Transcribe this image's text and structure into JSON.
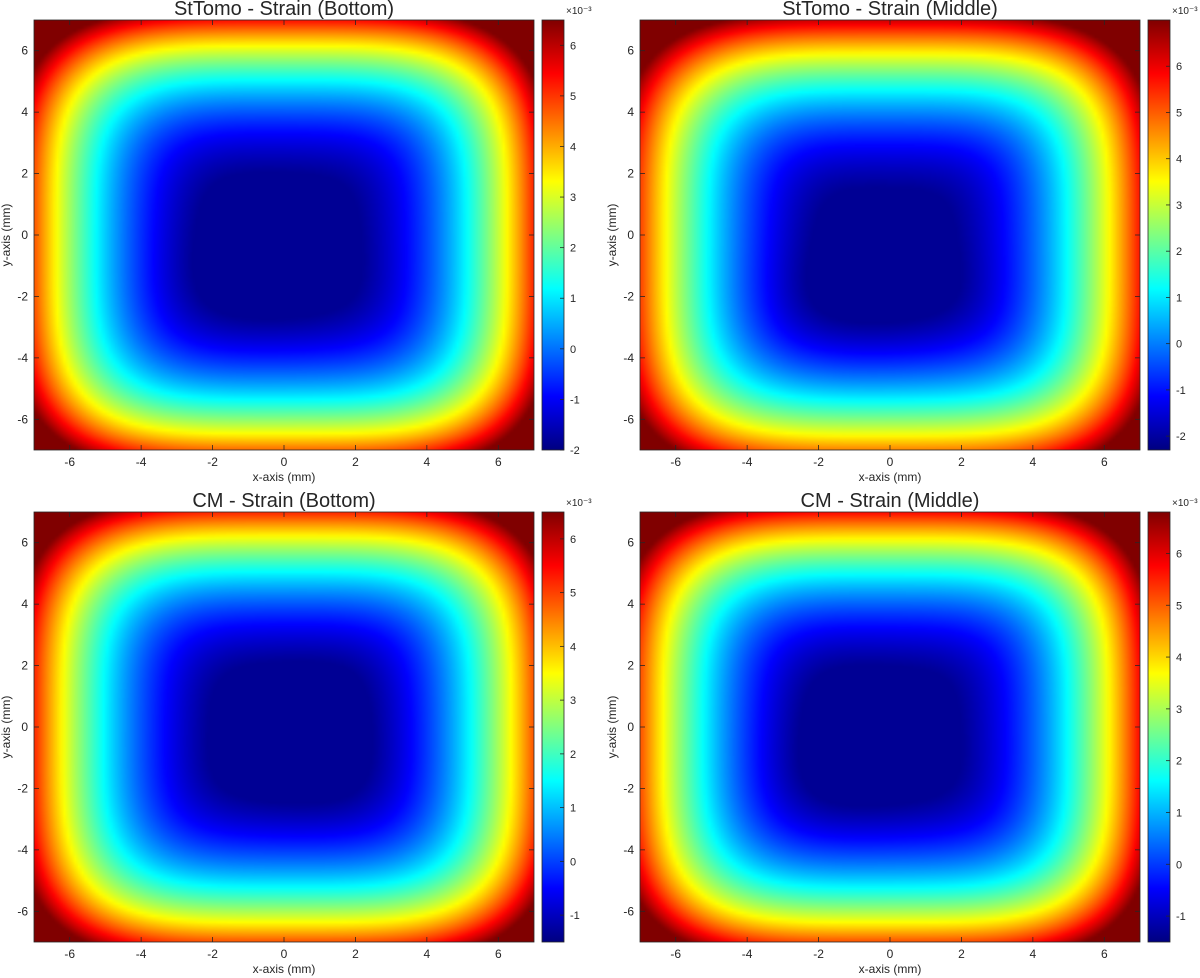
{
  "chart_data": [
    {
      "type": "heatmap",
      "title": "StTomo - Strain (Bottom)",
      "xlabel": "x-axis (mm)",
      "ylabel": "y-axis (mm)",
      "xlim": [
        -7,
        7
      ],
      "ylim": [
        -7,
        7
      ],
      "x_ticks": [
        -6,
        -4,
        -2,
        0,
        2,
        4,
        6
      ],
      "y_ticks": [
        -6,
        -4,
        -2,
        0,
        2,
        4,
        6
      ],
      "colormap": "jet",
      "colorbar": {
        "min": -2.0,
        "max": 6.5,
        "ticks": [
          -2,
          -1,
          0,
          1,
          2,
          3,
          4,
          5,
          6
        ],
        "exponent_label": "×10⁻³"
      },
      "field": {
        "center_x": -0.5,
        "center_y": -1.0,
        "power": 2.6,
        "gain": 1.0
      }
    },
    {
      "type": "heatmap",
      "title": "StTomo - Strain (Middle)",
      "xlabel": "x-axis (mm)",
      "ylabel": "y-axis (mm)",
      "xlim": [
        -7,
        7
      ],
      "ylim": [
        -7,
        7
      ],
      "x_ticks": [
        -6,
        -4,
        -2,
        0,
        2,
        4,
        6
      ],
      "y_ticks": [
        -6,
        -4,
        -2,
        0,
        2,
        4,
        6
      ],
      "colormap": "jet",
      "colorbar": {
        "min": -2.3,
        "max": 7.0,
        "ticks": [
          -2,
          -1,
          0,
          1,
          2,
          3,
          4,
          5,
          6
        ],
        "exponent_label": "×10⁻³"
      },
      "field": {
        "center_x": -0.5,
        "center_y": -2.0,
        "power": 2.4,
        "gain": 1.02
      }
    },
    {
      "type": "heatmap",
      "title": "CM - Strain (Bottom)",
      "xlabel": "x-axis (mm)",
      "ylabel": "y-axis (mm)",
      "xlim": [
        -7,
        7
      ],
      "ylim": [
        -7,
        7
      ],
      "x_ticks": [
        -6,
        -4,
        -2,
        0,
        2,
        4,
        6
      ],
      "y_ticks": [
        -6,
        -4,
        -2,
        0,
        2,
        4,
        6
      ],
      "colormap": "jet",
      "colorbar": {
        "min": -1.5,
        "max": 6.5,
        "ticks": [
          -1,
          0,
          1,
          2,
          3,
          4,
          5,
          6
        ],
        "exponent_label": "×10⁻³"
      },
      "field": {
        "center_x": 0.5,
        "center_y": -0.5,
        "power": 2.5,
        "gain": 1.0
      }
    },
    {
      "type": "heatmap",
      "title": "CM - Strain (Middle)",
      "xlabel": "x-axis (mm)",
      "ylabel": "y-axis (mm)",
      "xlim": [
        -7,
        7
      ],
      "ylim": [
        -7,
        7
      ],
      "x_ticks": [
        -6,
        -4,
        -2,
        0,
        2,
        4,
        6
      ],
      "y_ticks": [
        -6,
        -4,
        -2,
        0,
        2,
        4,
        6
      ],
      "colormap": "jet",
      "colorbar": {
        "min": -1.5,
        "max": 6.8,
        "ticks": [
          -1,
          0,
          1,
          2,
          3,
          4,
          5,
          6
        ],
        "exponent_label": "×10⁻³"
      },
      "field": {
        "center_x": -0.8,
        "center_y": -0.8,
        "power": 2.5,
        "gain": 1.02
      }
    }
  ]
}
